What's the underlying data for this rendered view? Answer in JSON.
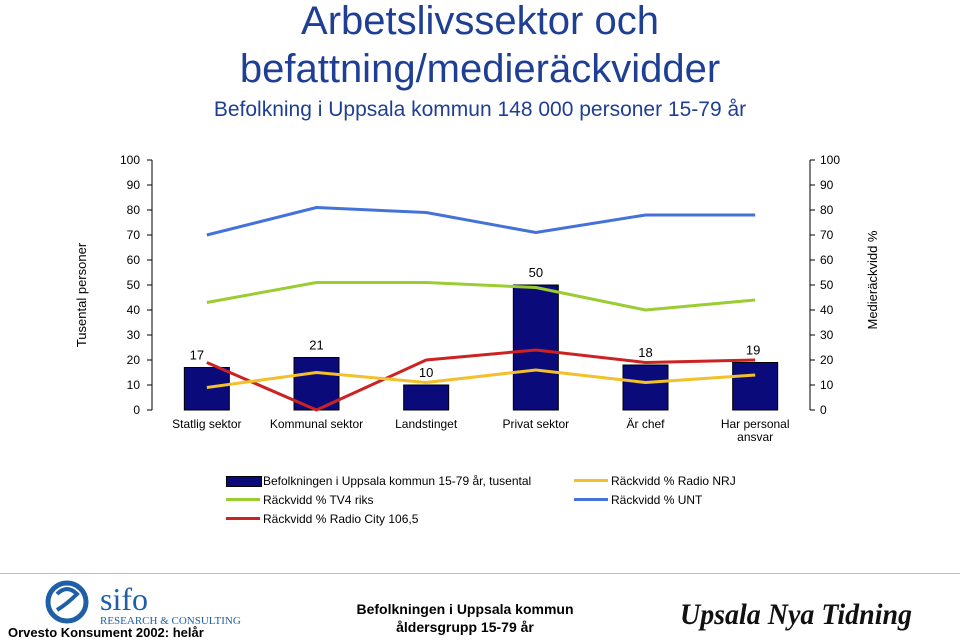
{
  "header": {
    "title_line1": "Arbetslivssektor och",
    "title_line2": "befattning/medieräckvidder",
    "subtitle": "Befolkning i Uppsala kommun 148 000 personer 15-79 år"
  },
  "chart_data": {
    "type": "bar",
    "categories": [
      "Statlig sektor",
      "Kommunal sektor",
      "Landstinget",
      "Privat sektor",
      "Är chef",
      "Har personal ansvar"
    ],
    "category_labels": [
      [
        "Statlig sektor"
      ],
      [
        "Kommunal sektor"
      ],
      [
        "Landstinget"
      ],
      [
        "Privat sektor"
      ],
      [
        "Är chef"
      ],
      [
        "Har personal",
        "ansvar"
      ]
    ],
    "ylabel": "Tusental personer",
    "y2label": "Medieräckvidd %",
    "ylim": [
      0,
      100
    ],
    "y2lim": [
      0,
      100
    ],
    "yticks": [
      0,
      10,
      20,
      30,
      40,
      50,
      60,
      70,
      80,
      90,
      100
    ],
    "y2ticks": [
      0,
      10,
      20,
      30,
      40,
      50,
      60,
      70,
      80,
      90,
      100
    ],
    "grid": false,
    "legend_position": "bottom",
    "series": [
      {
        "name": "Befolkningen i Uppsala kommun 15-79 år, tusental",
        "type": "bar",
        "axis": "left",
        "color": "#0a0a7a",
        "values": [
          17,
          21,
          10,
          50,
          18,
          19
        ],
        "data_labels": [
          "17",
          "21",
          "10",
          "50",
          "18",
          "19"
        ]
      },
      {
        "name": "Räckvidd % TV4 riks",
        "type": "line",
        "axis": "right",
        "color": "#9acd32",
        "values": [
          43,
          51,
          51,
          49,
          40,
          44
        ]
      },
      {
        "name": "Räckvidd % Radio City 106,5",
        "type": "line",
        "axis": "right",
        "color": "#cc2222",
        "values": [
          19,
          0,
          20,
          24,
          19,
          20
        ]
      },
      {
        "name": "Räckvidd % Radio NRJ",
        "type": "line",
        "axis": "right",
        "color": "#f2c02a",
        "values": [
          9,
          15,
          11,
          16,
          11,
          14
        ]
      },
      {
        "name": "Räckvidd % UNT",
        "type": "line",
        "axis": "right",
        "color": "#4472d8",
        "values": [
          70,
          81,
          79,
          71,
          78,
          78
        ]
      }
    ]
  },
  "legend": {
    "left": [
      {
        "label": "Befolkningen i Uppsala kommun 15-79 år, tusental",
        "color": "#0a0a7a",
        "kind": "bar"
      },
      {
        "label": "Räckvidd % TV4 riks",
        "color": "#9acd32",
        "kind": "line"
      },
      {
        "label": "Räckvidd % Radio City 106,5",
        "color": "#cc2222",
        "kind": "line"
      }
    ],
    "right": [
      {
        "label": "Räckvidd % Radio NRJ",
        "color": "#f2c02a",
        "kind": "line"
      },
      {
        "label": "Räckvidd % UNT",
        "color": "#4472d8",
        "kind": "line"
      }
    ]
  },
  "footer": {
    "left_text": "Orvesto Konsument 2002: helår",
    "center_line1": "Befolkningen i Uppsala kommun",
    "center_line2": "åldersgrupp 15-79 år",
    "logo_sifo_word": "sifo",
    "logo_sifo_tagline": "RESEARCH & CONSULTING",
    "logo_unt_word": "Upsala Nya Tidning"
  }
}
